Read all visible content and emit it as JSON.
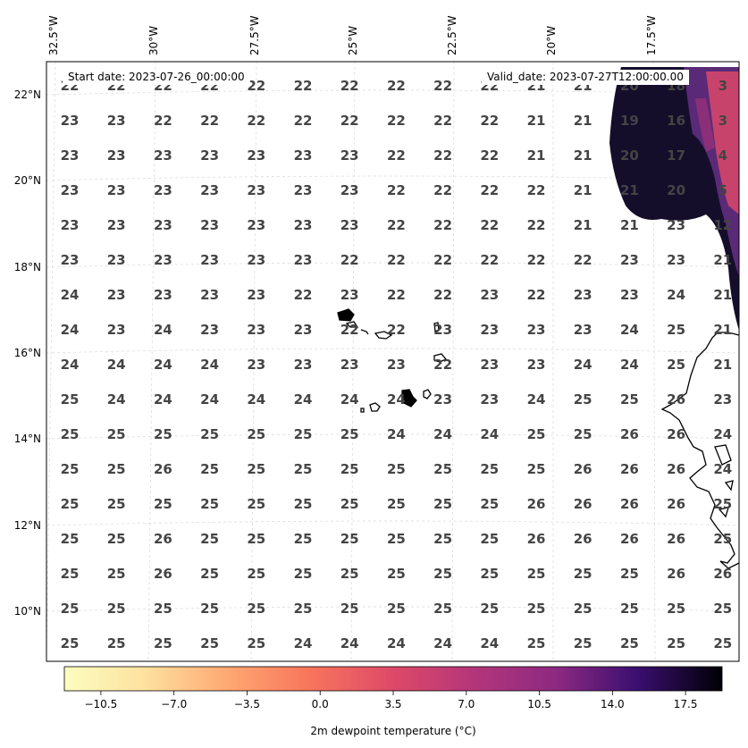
{
  "header": {
    "start_date": "Start date: 2023-07-26_00:00:00",
    "valid_date": "Valid_date: 2023-07-27T12:00:00.00"
  },
  "map": {
    "lon_labels": [
      "32.5°W",
      "30°W",
      "27.5°W",
      "25°W",
      "22.5°W",
      "20°W",
      "17.5°W"
    ],
    "lat_labels": [
      "22°N",
      "20°N",
      "18°N",
      "16°N",
      "14°N",
      "12°N",
      "10°N"
    ],
    "grid_values": [
      [
        "22",
        "22",
        "22",
        "22",
        "22",
        "22",
        "22",
        "22",
        "22",
        "22",
        "21",
        "21",
        "20",
        "18",
        "3"
      ],
      [
        "23",
        "23",
        "22",
        "22",
        "22",
        "22",
        "22",
        "22",
        "22",
        "22",
        "21",
        "21",
        "19",
        "16",
        "3"
      ],
      [
        "23",
        "23",
        "23",
        "23",
        "23",
        "23",
        "23",
        "22",
        "22",
        "22",
        "21",
        "21",
        "20",
        "17",
        "4"
      ],
      [
        "23",
        "23",
        "23",
        "23",
        "23",
        "23",
        "23",
        "22",
        "22",
        "22",
        "22",
        "21",
        "21",
        "20",
        "5"
      ],
      [
        "23",
        "23",
        "23",
        "23",
        "23",
        "23",
        "23",
        "22",
        "22",
        "22",
        "22",
        "21",
        "21",
        "23",
        "12"
      ],
      [
        "23",
        "23",
        "23",
        "23",
        "23",
        "23",
        "22",
        "22",
        "22",
        "22",
        "22",
        "22",
        "23",
        "23",
        "21"
      ],
      [
        "24",
        "23",
        "23",
        "23",
        "23",
        "22",
        "23",
        "22",
        "22",
        "23",
        "22",
        "23",
        "23",
        "24",
        "21"
      ],
      [
        "24",
        "23",
        "24",
        "23",
        "23",
        "23",
        "22",
        "22",
        "23",
        "23",
        "23",
        "23",
        "24",
        "25",
        "21"
      ],
      [
        "24",
        "24",
        "24",
        "24",
        "23",
        "23",
        "23",
        "23",
        "22",
        "23",
        "23",
        "24",
        "24",
        "25",
        "21"
      ],
      [
        "25",
        "24",
        "24",
        "24",
        "24",
        "24",
        "24",
        "24",
        "23",
        "23",
        "24",
        "25",
        "25",
        "26",
        "23"
      ],
      [
        "25",
        "25",
        "25",
        "25",
        "25",
        "25",
        "25",
        "24",
        "24",
        "24",
        "25",
        "25",
        "26",
        "26",
        "24"
      ],
      [
        "25",
        "25",
        "26",
        "25",
        "25",
        "25",
        "25",
        "25",
        "25",
        "25",
        "25",
        "26",
        "26",
        "26",
        "24"
      ],
      [
        "25",
        "25",
        "25",
        "25",
        "25",
        "25",
        "25",
        "25",
        "25",
        "25",
        "26",
        "26",
        "26",
        "26",
        "25"
      ],
      [
        "25",
        "25",
        "26",
        "25",
        "25",
        "25",
        "25",
        "25",
        "25",
        "25",
        "26",
        "26",
        "26",
        "26",
        "25"
      ],
      [
        "25",
        "25",
        "26",
        "25",
        "25",
        "25",
        "25",
        "25",
        "25",
        "25",
        "25",
        "25",
        "25",
        "26",
        "26"
      ],
      [
        "25",
        "25",
        "25",
        "25",
        "25",
        "25",
        "25",
        "25",
        "25",
        "25",
        "25",
        "25",
        "25",
        "25",
        "25"
      ],
      [
        "25",
        "25",
        "25",
        "25",
        "25",
        "24",
        "24",
        "24",
        "24",
        "24",
        "25",
        "25",
        "25",
        "25",
        "25"
      ]
    ],
    "colors": {
      "land": "#ffffff",
      "warm": "#0d0a1f",
      "cold": "#c8436b"
    }
  },
  "colorbar": {
    "ticks": [
      "−10.5",
      "−7.0",
      "−3.5",
      "0.0",
      "3.5",
      "7.0",
      "10.5",
      "14.0",
      "17.5"
    ],
    "label": "2m dewpoint temperature ($^\\circ$C)",
    "label_display": "2m dewpoint temperature (°C)",
    "colormap": "magma_r"
  }
}
